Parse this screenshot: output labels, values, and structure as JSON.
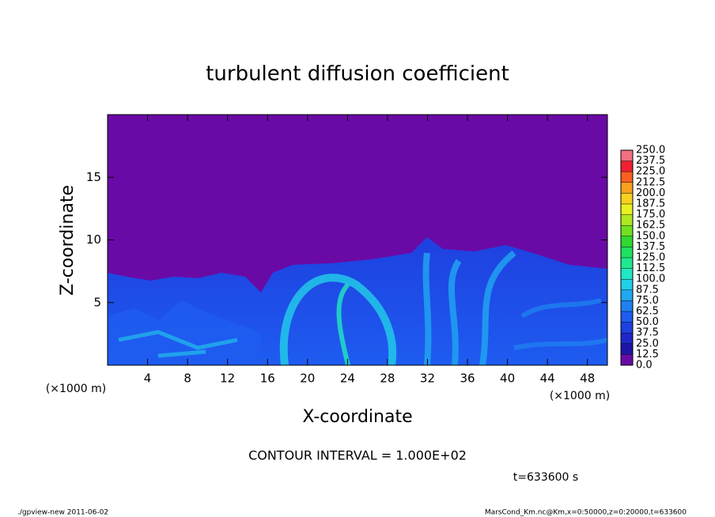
{
  "chart_data": {
    "type": "contour",
    "title": "turbulent diffusion coefficient",
    "x_label": "X-coordinate",
    "y_label": "Z-coordinate",
    "x_unit_left": "(×1000 m)",
    "x_unit_right": "(×1000 m)",
    "xlim": [
      0,
      50
    ],
    "xticks": [
      4,
      8,
      12,
      16,
      20,
      24,
      28,
      32,
      36,
      40,
      44,
      48
    ],
    "ylim": [
      0,
      20
    ],
    "yticks": [
      5,
      10,
      15
    ],
    "colorbar": {
      "ticks": [
        {
          "value": 0,
          "label": "0.0"
        },
        {
          "value": 12.5,
          "label": "12.5"
        },
        {
          "value": 25,
          "label": "25.0"
        },
        {
          "value": 37.5,
          "label": "37.5"
        },
        {
          "value": 50,
          "label": "50.0"
        },
        {
          "value": 62.5,
          "label": "62.5"
        },
        {
          "value": 75,
          "label": "75.0"
        },
        {
          "value": 87.5,
          "label": "87.5"
        },
        {
          "value": 100,
          "label": "100.0"
        },
        {
          "value": 112.5,
          "label": "112.5"
        },
        {
          "value": 125,
          "label": "125.0"
        },
        {
          "value": 137.5,
          "label": "137.5"
        },
        {
          "value": 150,
          "label": "150.0"
        },
        {
          "value": 162.5,
          "label": "162.5"
        },
        {
          "value": 175,
          "label": "175.0"
        },
        {
          "value": 187.5,
          "label": "187.5"
        },
        {
          "value": 200,
          "label": "200.0"
        },
        {
          "value": 212.5,
          "label": "212.5"
        },
        {
          "value": 225,
          "label": "225.0"
        },
        {
          "value": 237.5,
          "label": "237.5"
        },
        {
          "value": 250,
          "label": "250.0"
        }
      ],
      "colors": [
        "#6a0aa6",
        "#1e14a8",
        "#1e28c8",
        "#1e40e0",
        "#1e5cf0",
        "#1e80f0",
        "#20a8f0",
        "#22d0e8",
        "#20e8c0",
        "#20e890",
        "#20e060",
        "#30d830",
        "#70e020",
        "#b0e820",
        "#e8f020",
        "#f8d020",
        "#f8a020",
        "#f86020",
        "#f02030",
        "#f07080"
      ]
    },
    "contour_interval": "CONTOUR INTERVAL = 1.000E+02",
    "time": "t=633600 s",
    "footer_left": "./gpview-new  2011-06-02",
    "footer_right": "MarsCond_Km.nc@Km,x=0:50000,z=0:20000,t=633600"
  }
}
